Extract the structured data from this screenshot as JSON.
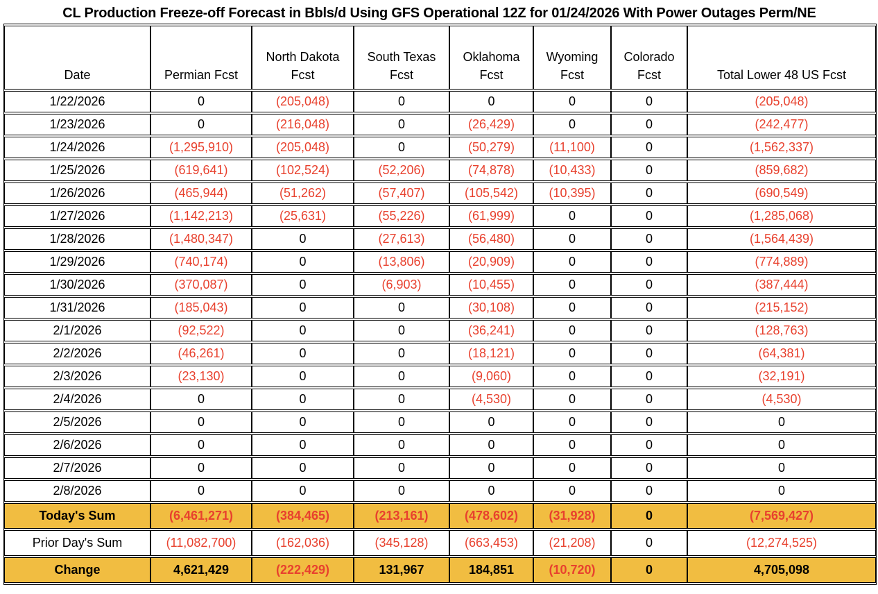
{
  "title": "CL Production Freeze-off Forecast in Bbls/d Using GFS Operational 12Z for 01/24/2026 With Power Outages Perm/NE",
  "colors": {
    "negative": "#e8412e",
    "highlight": "#f1bd41",
    "border": "#000000"
  },
  "table": {
    "columns": [
      "Date",
      "Permian Fcst",
      "North Dakota Fcst",
      "South Texas Fcst",
      "Oklahoma Fcst",
      "Wyoming Fcst",
      "Colorado Fcst",
      "Total Lower 48 US Fcst"
    ],
    "rows": [
      {
        "date": "1/22/2026",
        "values": [
          "0",
          "(205,048)",
          "0",
          "0",
          "0",
          "0",
          "(205,048)"
        ]
      },
      {
        "date": "1/23/2026",
        "values": [
          "0",
          "(216,048)",
          "0",
          "(26,429)",
          "0",
          "0",
          "(242,477)"
        ]
      },
      {
        "date": "1/24/2026",
        "values": [
          "(1,295,910)",
          "(205,048)",
          "0",
          "(50,279)",
          "(11,100)",
          "0",
          "(1,562,337)"
        ]
      },
      {
        "date": "1/25/2026",
        "values": [
          "(619,641)",
          "(102,524)",
          "(52,206)",
          "(74,878)",
          "(10,433)",
          "0",
          "(859,682)"
        ]
      },
      {
        "date": "1/26/2026",
        "values": [
          "(465,944)",
          "(51,262)",
          "(57,407)",
          "(105,542)",
          "(10,395)",
          "0",
          "(690,549)"
        ]
      },
      {
        "date": "1/27/2026",
        "values": [
          "(1,142,213)",
          "(25,631)",
          "(55,226)",
          "(61,999)",
          "0",
          "0",
          "(1,285,068)"
        ]
      },
      {
        "date": "1/28/2026",
        "values": [
          "(1,480,347)",
          "0",
          "(27,613)",
          "(56,480)",
          "0",
          "0",
          "(1,564,439)"
        ]
      },
      {
        "date": "1/29/2026",
        "values": [
          "(740,174)",
          "0",
          "(13,806)",
          "(20,909)",
          "0",
          "0",
          "(774,889)"
        ]
      },
      {
        "date": "1/30/2026",
        "values": [
          "(370,087)",
          "0",
          "(6,903)",
          "(10,455)",
          "0",
          "0",
          "(387,444)"
        ]
      },
      {
        "date": "1/31/2026",
        "values": [
          "(185,043)",
          "0",
          "0",
          "(30,108)",
          "0",
          "0",
          "(215,152)"
        ]
      },
      {
        "date": "2/1/2026",
        "values": [
          "(92,522)",
          "0",
          "0",
          "(36,241)",
          "0",
          "0",
          "(128,763)"
        ]
      },
      {
        "date": "2/2/2026",
        "values": [
          "(46,261)",
          "0",
          "0",
          "(18,121)",
          "0",
          "0",
          "(64,381)"
        ]
      },
      {
        "date": "2/3/2026",
        "values": [
          "(23,130)",
          "0",
          "0",
          "(9,060)",
          "0",
          "0",
          "(32,191)"
        ]
      },
      {
        "date": "2/4/2026",
        "values": [
          "0",
          "0",
          "0",
          "(4,530)",
          "0",
          "0",
          "(4,530)"
        ]
      },
      {
        "date": "2/5/2026",
        "values": [
          "0",
          "0",
          "0",
          "0",
          "0",
          "0",
          "0"
        ]
      },
      {
        "date": "2/6/2026",
        "values": [
          "0",
          "0",
          "0",
          "0",
          "0",
          "0",
          "0"
        ]
      },
      {
        "date": "2/7/2026",
        "values": [
          "0",
          "0",
          "0",
          "0",
          "0",
          "0",
          "0"
        ]
      },
      {
        "date": "2/8/2026",
        "values": [
          "0",
          "0",
          "0",
          "0",
          "0",
          "0",
          "0"
        ]
      }
    ],
    "summary_rows": [
      {
        "label": "Today's Sum",
        "highlight": true,
        "values": [
          "(6,461,271)",
          "(384,465)",
          "(213,161)",
          "(478,602)",
          "(31,928)",
          "0",
          "(7,569,427)"
        ]
      },
      {
        "label": "Prior Day's Sum",
        "highlight": false,
        "values": [
          "(11,082,700)",
          "(162,036)",
          "(345,128)",
          "(663,453)",
          "(21,208)",
          "0",
          "(12,274,525)"
        ]
      },
      {
        "label": "Change",
        "highlight": true,
        "values": [
          "4,621,429",
          "(222,429)",
          "131,967",
          "184,851",
          "(10,720)",
          "0",
          "4,705,098"
        ]
      }
    ]
  },
  "chart_data": {
    "type": "table",
    "title": "CL Production Freeze-off Forecast in Bbls/d Using GFS Operational 12Z for 01/24/2026 With Power Outages Perm/NE",
    "units": "Bbls/d",
    "columns": [
      "Date",
      "Permian Fcst",
      "North Dakota Fcst",
      "South Texas Fcst",
      "Oklahoma Fcst",
      "Wyoming Fcst",
      "Colorado Fcst",
      "Total Lower 48 US Fcst"
    ],
    "rows": [
      [
        "1/22/2026",
        0,
        -205048,
        0,
        0,
        0,
        0,
        -205048
      ],
      [
        "1/23/2026",
        0,
        -216048,
        0,
        -26429,
        0,
        0,
        -242477
      ],
      [
        "1/24/2026",
        -1295910,
        -205048,
        0,
        -50279,
        -11100,
        0,
        -1562337
      ],
      [
        "1/25/2026",
        -619641,
        -102524,
        -52206,
        -74878,
        -10433,
        0,
        -859682
      ],
      [
        "1/26/2026",
        -465944,
        -51262,
        -57407,
        -105542,
        -10395,
        0,
        -690549
      ],
      [
        "1/27/2026",
        -1142213,
        -25631,
        -55226,
        -61999,
        0,
        0,
        -1285068
      ],
      [
        "1/28/2026",
        -1480347,
        0,
        -27613,
        -56480,
        0,
        0,
        -1564439
      ],
      [
        "1/29/2026",
        -740174,
        0,
        -13806,
        -20909,
        0,
        0,
        -774889
      ],
      [
        "1/30/2026",
        -370087,
        0,
        -6903,
        -10455,
        0,
        0,
        -387444
      ],
      [
        "1/31/2026",
        -185043,
        0,
        0,
        -30108,
        0,
        0,
        -215152
      ],
      [
        "2/1/2026",
        -92522,
        0,
        0,
        -36241,
        0,
        0,
        -128763
      ],
      [
        "2/2/2026",
        -46261,
        0,
        0,
        -18121,
        0,
        0,
        -64381
      ],
      [
        "2/3/2026",
        -23130,
        0,
        0,
        -9060,
        0,
        0,
        -32191
      ],
      [
        "2/4/2026",
        0,
        0,
        0,
        -4530,
        0,
        0,
        -4530
      ],
      [
        "2/5/2026",
        0,
        0,
        0,
        0,
        0,
        0,
        0
      ],
      [
        "2/6/2026",
        0,
        0,
        0,
        0,
        0,
        0,
        0
      ],
      [
        "2/7/2026",
        0,
        0,
        0,
        0,
        0,
        0,
        0
      ],
      [
        "2/8/2026",
        0,
        0,
        0,
        0,
        0,
        0,
        0
      ],
      [
        "Today's Sum",
        -6461271,
        -384465,
        -213161,
        -478602,
        -31928,
        0,
        -7569427
      ],
      [
        "Prior Day's Sum",
        -11082700,
        -162036,
        -345128,
        -663453,
        -21208,
        0,
        -12274525
      ],
      [
        "Change",
        4621429,
        -222429,
        131967,
        184851,
        -10720,
        0,
        4705098
      ]
    ]
  }
}
